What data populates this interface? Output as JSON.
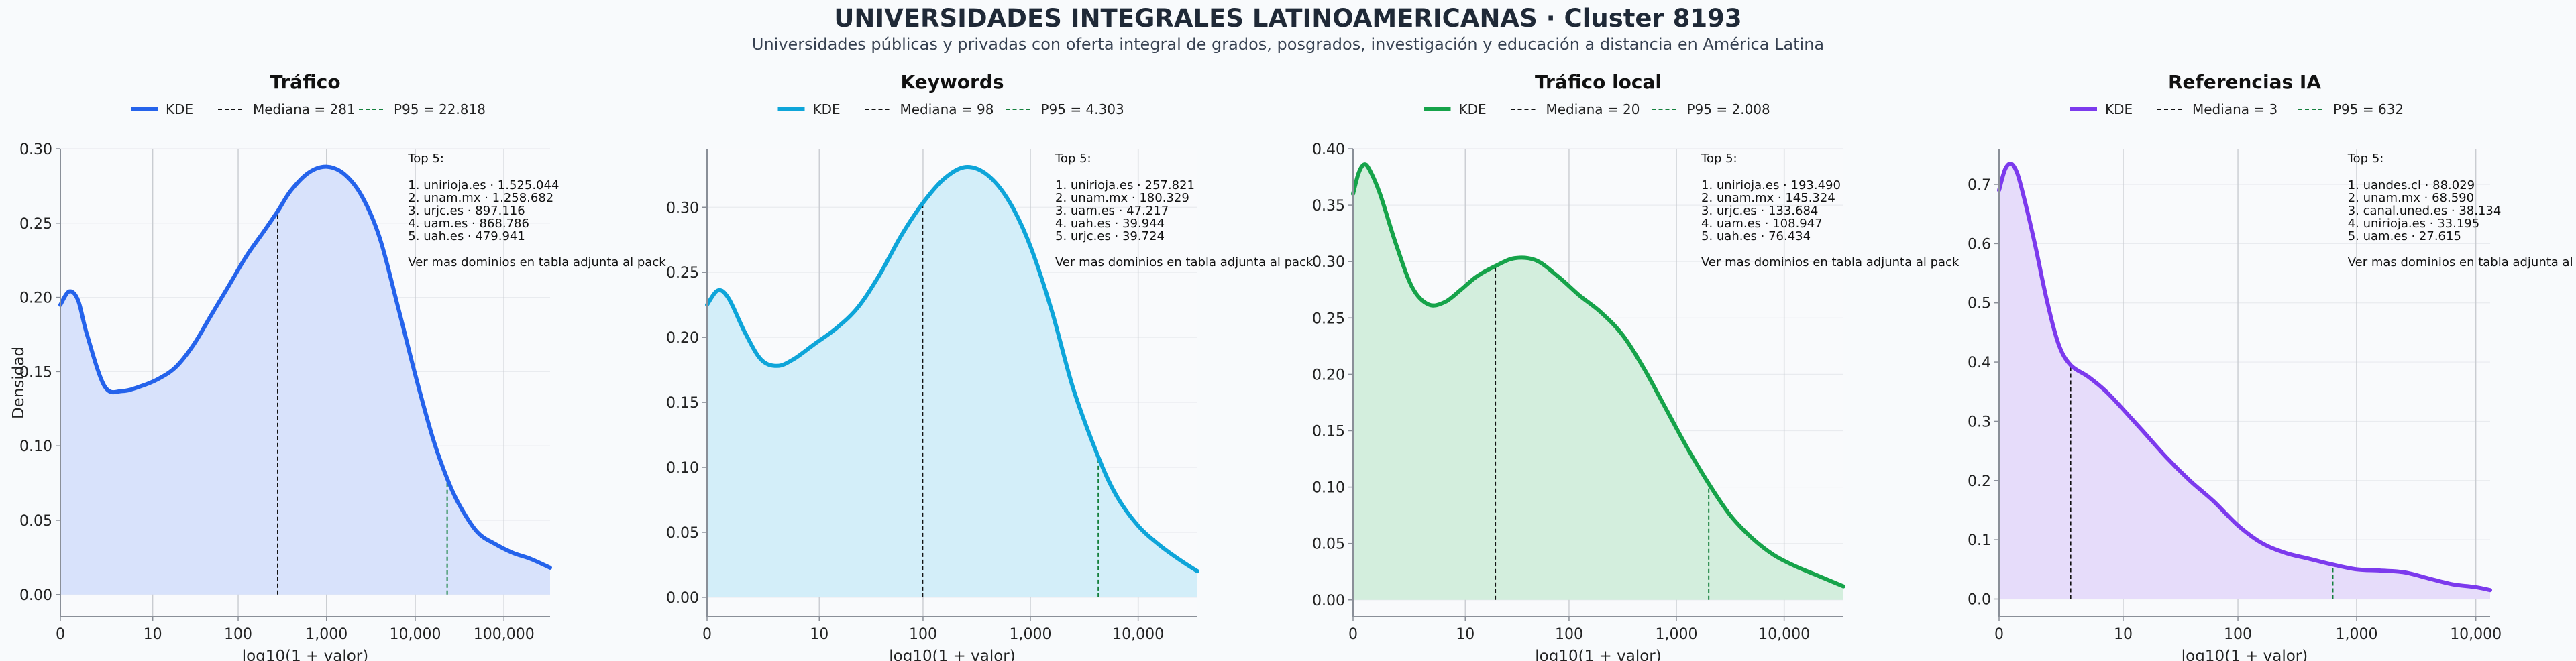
{
  "title": "UNIVERSIDADES INTEGRALES LATINOAMERICANAS · Cluster 8193",
  "subtitle": "Universidades públicas y privadas con oferta integral de grados, posgrados, investigación y educación a distancia en América Latina",
  "colors": {
    "trafico": "#2563eb",
    "keywords": "#0ea5d9",
    "trafico_local": "#16a34a",
    "referencias_ia": "#7c3aed",
    "p95_line": "#15803d",
    "median_line": "#111111"
  },
  "chart_data": [
    {
      "type": "area",
      "title": "Tráfico",
      "xlabel": "log10(1 + valor)",
      "ylabel": "Densidad",
      "xlim": [
        0,
        5.52
      ],
      "ylim": [
        -0.015,
        0.3
      ],
      "xticks": [
        {
          "v": 0,
          "label": "0"
        },
        {
          "v": 1.041,
          "label": "10"
        },
        {
          "v": 2.004,
          "label": "100"
        },
        {
          "v": 3,
          "label": "1,000"
        },
        {
          "v": 4,
          "label": "10,000"
        },
        {
          "v": 5,
          "label": "100,000"
        }
      ],
      "yticks": [
        {
          "v": 0,
          "label": "0.00"
        },
        {
          "v": 0.05,
          "label": "0.05"
        },
        {
          "v": 0.1,
          "label": "0.10"
        },
        {
          "v": 0.15,
          "label": "0.15"
        },
        {
          "v": 0.2,
          "label": "0.20"
        },
        {
          "v": 0.25,
          "label": "0.25"
        },
        {
          "v": 0.3,
          "label": "0.30"
        }
      ],
      "legend": [
        "KDE",
        "Mediana = 281",
        "P95 = 22.818"
      ],
      "median": 2.45,
      "p95": 4.36,
      "x": [
        0,
        0.1,
        0.2,
        0.3,
        0.5,
        0.7,
        0.9,
        1.1,
        1.3,
        1.5,
        1.7,
        1.9,
        2.1,
        2.3,
        2.45,
        2.6,
        2.8,
        3.0,
        3.2,
        3.4,
        3.6,
        3.8,
        4.0,
        4.2,
        4.36,
        4.5,
        4.7,
        4.9,
        5.1,
        5.3,
        5.52
      ],
      "y": [
        0.195,
        0.204,
        0.198,
        0.175,
        0.14,
        0.137,
        0.14,
        0.145,
        0.153,
        0.168,
        0.188,
        0.208,
        0.228,
        0.245,
        0.258,
        0.272,
        0.284,
        0.288,
        0.283,
        0.268,
        0.24,
        0.195,
        0.148,
        0.105,
        0.078,
        0.06,
        0.042,
        0.034,
        0.028,
        0.024,
        0.018
      ],
      "top5": {
        "heading": "Top 5:",
        "items": [
          "1. unirioja.es · 1.525.044",
          "2. unam.mx · 1.258.682",
          "3. urjc.es · 897.116",
          "4. uam.es · 868.786",
          "5. uah.es · 479.941"
        ],
        "note": "Ver mas dominios en tabla adjunta al pack"
      }
    },
    {
      "type": "area",
      "title": "Keywords",
      "xlabel": "log10(1 + valor)",
      "ylabel": "",
      "xlim": [
        0,
        4.55
      ],
      "ylim": [
        -0.015,
        0.345
      ],
      "xticks": [
        {
          "v": 0,
          "label": "0"
        },
        {
          "v": 1.041,
          "label": "10"
        },
        {
          "v": 2.004,
          "label": "100"
        },
        {
          "v": 3,
          "label": "1,000"
        },
        {
          "v": 4,
          "label": "10,000"
        }
      ],
      "yticks": [
        {
          "v": 0,
          "label": "0.00"
        },
        {
          "v": 0.05,
          "label": "0.05"
        },
        {
          "v": 0.1,
          "label": "0.10"
        },
        {
          "v": 0.15,
          "label": "0.15"
        },
        {
          "v": 0.2,
          "label": "0.20"
        },
        {
          "v": 0.25,
          "label": "0.25"
        },
        {
          "v": 0.3,
          "label": "0.30"
        }
      ],
      "legend": [
        "KDE",
        "Mediana = 98",
        "P95 = 4.303"
      ],
      "median": 2.0,
      "p95": 3.63,
      "x": [
        0,
        0.1,
        0.2,
        0.35,
        0.5,
        0.65,
        0.8,
        1.0,
        1.2,
        1.4,
        1.6,
        1.8,
        2.0,
        2.2,
        2.4,
        2.6,
        2.8,
        3.0,
        3.2,
        3.4,
        3.63,
        3.8,
        4.0,
        4.2,
        4.4,
        4.55
      ],
      "y": [
        0.225,
        0.236,
        0.23,
        0.204,
        0.183,
        0.178,
        0.183,
        0.195,
        0.207,
        0.223,
        0.248,
        0.278,
        0.303,
        0.322,
        0.331,
        0.325,
        0.305,
        0.27,
        0.22,
        0.16,
        0.108,
        0.078,
        0.055,
        0.04,
        0.028,
        0.02
      ],
      "top5": {
        "heading": "Top 5:",
        "items": [
          "1. unirioja.es · 257.821",
          "2. unam.mx · 180.329",
          "3. uam.es · 47.217",
          "4. uah.es · 39.944",
          "5. urjc.es · 39.724"
        ],
        "note": "Ver mas dominios en tabla adjunta al pack"
      }
    },
    {
      "type": "area",
      "title": "Tráfico local",
      "xlabel": "log10(1 + valor)",
      "ylabel": "",
      "xlim": [
        0,
        4.55
      ],
      "ylim": [
        -0.015,
        0.4
      ],
      "xticks": [
        {
          "v": 0,
          "label": "0"
        },
        {
          "v": 1.041,
          "label": "10"
        },
        {
          "v": 2.004,
          "label": "100"
        },
        {
          "v": 3,
          "label": "1,000"
        },
        {
          "v": 4,
          "label": "10,000"
        }
      ],
      "yticks": [
        {
          "v": 0,
          "label": "0.00"
        },
        {
          "v": 0.05,
          "label": "0.05"
        },
        {
          "v": 0.1,
          "label": "0.10"
        },
        {
          "v": 0.15,
          "label": "0.15"
        },
        {
          "v": 0.2,
          "label": "0.20"
        },
        {
          "v": 0.25,
          "label": "0.25"
        },
        {
          "v": 0.3,
          "label": "0.30"
        },
        {
          "v": 0.35,
          "label": "0.35"
        },
        {
          "v": 0.4,
          "label": "0.40"
        }
      ],
      "legend": [
        "KDE",
        "Mediana = 20",
        "P95 = 2.008"
      ],
      "median": 1.32,
      "p95": 3.3,
      "x": [
        0,
        0.05,
        0.1,
        0.15,
        0.25,
        0.4,
        0.55,
        0.7,
        0.85,
        1.0,
        1.15,
        1.32,
        1.5,
        1.7,
        1.9,
        2.1,
        2.3,
        2.5,
        2.7,
        2.9,
        3.1,
        3.3,
        3.5,
        3.7,
        3.9,
        4.1,
        4.3,
        4.55
      ],
      "y": [
        0.36,
        0.378,
        0.386,
        0.382,
        0.36,
        0.315,
        0.277,
        0.262,
        0.264,
        0.275,
        0.287,
        0.296,
        0.303,
        0.301,
        0.287,
        0.27,
        0.255,
        0.235,
        0.205,
        0.17,
        0.135,
        0.103,
        0.075,
        0.055,
        0.04,
        0.03,
        0.022,
        0.012
      ],
      "top5": {
        "heading": "Top 5:",
        "items": [
          "1. unirioja.es · 193.490",
          "2. unam.mx · 145.324",
          "3. urjc.es · 133.684",
          "4. uam.es · 108.947",
          "5. uah.es · 76.434"
        ],
        "note": "Ver mas dominios en tabla adjunta al pack"
      }
    },
    {
      "type": "area",
      "title": "Referencias IA",
      "xlabel": "log10(1 + valor)",
      "ylabel": "",
      "xlim": [
        0,
        4.12
      ],
      "ylim": [
        -0.03,
        0.76
      ],
      "xticks": [
        {
          "v": 0,
          "label": "0"
        },
        {
          "v": 1.041,
          "label": "10"
        },
        {
          "v": 2.004,
          "label": "100"
        },
        {
          "v": 3,
          "label": "1,000"
        },
        {
          "v": 4,
          "label": "10,000"
        }
      ],
      "yticks": [
        {
          "v": 0,
          "label": "0.0"
        },
        {
          "v": 0.1,
          "label": "0.1"
        },
        {
          "v": 0.2,
          "label": "0.2"
        },
        {
          "v": 0.3,
          "label": "0.3"
        },
        {
          "v": 0.4,
          "label": "0.4"
        },
        {
          "v": 0.5,
          "label": "0.5"
        },
        {
          "v": 0.6,
          "label": "0.6"
        },
        {
          "v": 0.7,
          "label": "0.7"
        }
      ],
      "legend": [
        "KDE",
        "Mediana = 3",
        "P95 = 632"
      ],
      "median": 0.6,
      "p95": 2.8,
      "x": [
        0,
        0.05,
        0.1,
        0.15,
        0.2,
        0.3,
        0.4,
        0.5,
        0.6,
        0.75,
        0.9,
        1.05,
        1.2,
        1.4,
        1.6,
        1.8,
        2.0,
        2.2,
        2.4,
        2.6,
        2.8,
        3.0,
        3.2,
        3.4,
        3.6,
        3.8,
        4.0,
        4.12
      ],
      "y": [
        0.69,
        0.725,
        0.735,
        0.72,
        0.685,
        0.6,
        0.505,
        0.43,
        0.395,
        0.375,
        0.35,
        0.318,
        0.285,
        0.24,
        0.2,
        0.165,
        0.125,
        0.095,
        0.078,
        0.068,
        0.058,
        0.05,
        0.048,
        0.045,
        0.035,
        0.025,
        0.02,
        0.015
      ],
      "top5": {
        "heading": "Top 5:",
        "items": [
          "1. uandes.cl · 88.029",
          "2. unam.mx · 68.590",
          "3. canal.uned.es · 38.134",
          "4. unirioja.es · 33.195",
          "5. uam.es · 27.615"
        ],
        "note": "Ver mas dominios en tabla adjunta al pack"
      }
    }
  ]
}
